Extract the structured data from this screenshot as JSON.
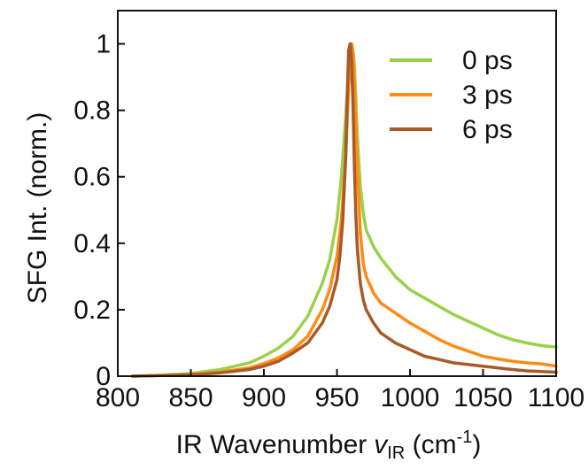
{
  "chart_data": {
    "type": "line",
    "xlabel": "IR Wavenumber",
    "xlabel_var": "v",
    "xlabel_sub": "IR",
    "xlabel_unit_open": " (cm",
    "xlabel_unit_sup": "-1",
    "xlabel_unit_close": ")",
    "ylabel": "SFG Int. (norm.)",
    "xlim": [
      800,
      1100
    ],
    "ylim": [
      0,
      1.1
    ],
    "xticks": [
      800,
      850,
      900,
      950,
      1000,
      1050,
      1100
    ],
    "xtick_labels": [
      "800",
      "850",
      "900",
      "950",
      "1000",
      "1050",
      "1100"
    ],
    "yticks": [
      0,
      0.2,
      0.4,
      0.6,
      0.8,
      1.0
    ],
    "ytick_labels": [
      "0",
      "0.2",
      "0.4",
      "0.6",
      "0.8",
      "1"
    ],
    "grid": false,
    "legend_position": "top-right",
    "series": [
      {
        "name": "0 ps",
        "color": "#9ad14b",
        "x": [
          810,
          830,
          850,
          870,
          890,
          900,
          910,
          920,
          930,
          940,
          945,
          950,
          953,
          956,
          958,
          959,
          960,
          961,
          962,
          964,
          966,
          968,
          970,
          975,
          980,
          990,
          1000,
          1010,
          1020,
          1030,
          1040,
          1050,
          1060,
          1070,
          1080,
          1090,
          1100
        ],
        "y": [
          0.0,
          0.003,
          0.008,
          0.02,
          0.04,
          0.06,
          0.085,
          0.12,
          0.18,
          0.28,
          0.35,
          0.47,
          0.6,
          0.78,
          0.93,
          0.99,
          1.0,
          0.98,
          0.93,
          0.72,
          0.57,
          0.49,
          0.44,
          0.39,
          0.355,
          0.3,
          0.26,
          0.235,
          0.21,
          0.185,
          0.165,
          0.145,
          0.125,
          0.11,
          0.1,
          0.092,
          0.088
        ]
      },
      {
        "name": "3 ps",
        "color": "#ff8a14",
        "x": [
          810,
          830,
          850,
          870,
          890,
          900,
          910,
          920,
          930,
          940,
          945,
          950,
          953,
          956,
          958,
          959,
          960,
          961,
          962,
          964,
          966,
          968,
          970,
          975,
          980,
          990,
          1000,
          1010,
          1020,
          1030,
          1040,
          1050,
          1060,
          1070,
          1080,
          1090,
          1100
        ],
        "y": [
          0.0,
          0.002,
          0.005,
          0.012,
          0.025,
          0.038,
          0.055,
          0.08,
          0.12,
          0.2,
          0.26,
          0.36,
          0.47,
          0.66,
          0.87,
          0.97,
          1.0,
          0.97,
          0.88,
          0.62,
          0.43,
          0.34,
          0.3,
          0.25,
          0.22,
          0.19,
          0.16,
          0.135,
          0.11,
          0.09,
          0.075,
          0.06,
          0.052,
          0.045,
          0.04,
          0.037,
          0.03
        ]
      },
      {
        "name": "6 ps",
        "color": "#a85a28",
        "x": [
          810,
          830,
          850,
          870,
          890,
          900,
          910,
          920,
          930,
          940,
          945,
          950,
          952,
          954,
          956,
          957,
          958,
          959,
          960,
          961,
          962,
          963,
          964,
          966,
          968,
          970,
          975,
          980,
          990,
          1000,
          1010,
          1020,
          1030,
          1040,
          1050,
          1060,
          1070,
          1080,
          1090,
          1100
        ],
        "y": [
          0.0,
          0.002,
          0.004,
          0.01,
          0.02,
          0.03,
          0.045,
          0.07,
          0.1,
          0.16,
          0.21,
          0.29,
          0.36,
          0.47,
          0.66,
          0.84,
          0.98,
          1.0,
          0.95,
          0.82,
          0.62,
          0.48,
          0.38,
          0.28,
          0.23,
          0.2,
          0.16,
          0.13,
          0.1,
          0.08,
          0.06,
          0.05,
          0.04,
          0.035,
          0.03,
          0.025,
          0.02,
          0.016,
          0.014,
          0.012
        ]
      }
    ]
  }
}
